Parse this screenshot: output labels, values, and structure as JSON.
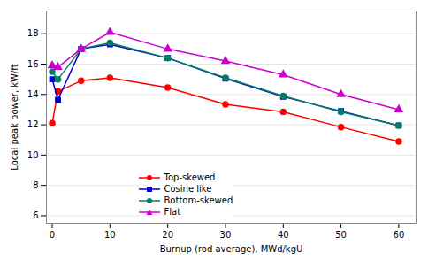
{
  "chart_data": {
    "type": "line",
    "x": [
      0,
      1,
      5,
      10,
      20,
      30,
      40,
      50,
      60
    ],
    "series": [
      {
        "name": "Top-skewed",
        "color": "#ff0000",
        "marker": "circle",
        "values": [
          12.1,
          14.2,
          14.9,
          15.1,
          14.45,
          13.35,
          12.85,
          11.85,
          10.9
        ]
      },
      {
        "name": "Cosine like",
        "color": "#0000cc",
        "marker": "square",
        "values": [
          15.0,
          13.65,
          17.0,
          17.3,
          16.4,
          15.05,
          13.85,
          12.9,
          11.95
        ]
      },
      {
        "name": "Bottom-skewed",
        "color": "#008060",
        "marker": "circle",
        "values": [
          15.5,
          15.0,
          17.0,
          17.4,
          16.4,
          15.1,
          13.9,
          12.85,
          11.95
        ]
      },
      {
        "name": "Flat",
        "color": "#cc00cc",
        "marker": "triangle",
        "values": [
          15.9,
          15.8,
          17.0,
          18.1,
          17.0,
          16.2,
          15.3,
          14.0,
          13.0
        ]
      }
    ],
    "xlabel": "Burnup (rod average), MWd/kgU",
    "ylabel": "Local peak power, kW/ft",
    "xlim": [
      -1,
      63
    ],
    "ylim": [
      5.5,
      19.5
    ],
    "xticks": [
      0,
      10,
      20,
      30,
      40,
      50,
      60
    ],
    "yticks": [
      6,
      8,
      10,
      12,
      14,
      16,
      18
    ],
    "grid": true,
    "legend": "lower left"
  }
}
